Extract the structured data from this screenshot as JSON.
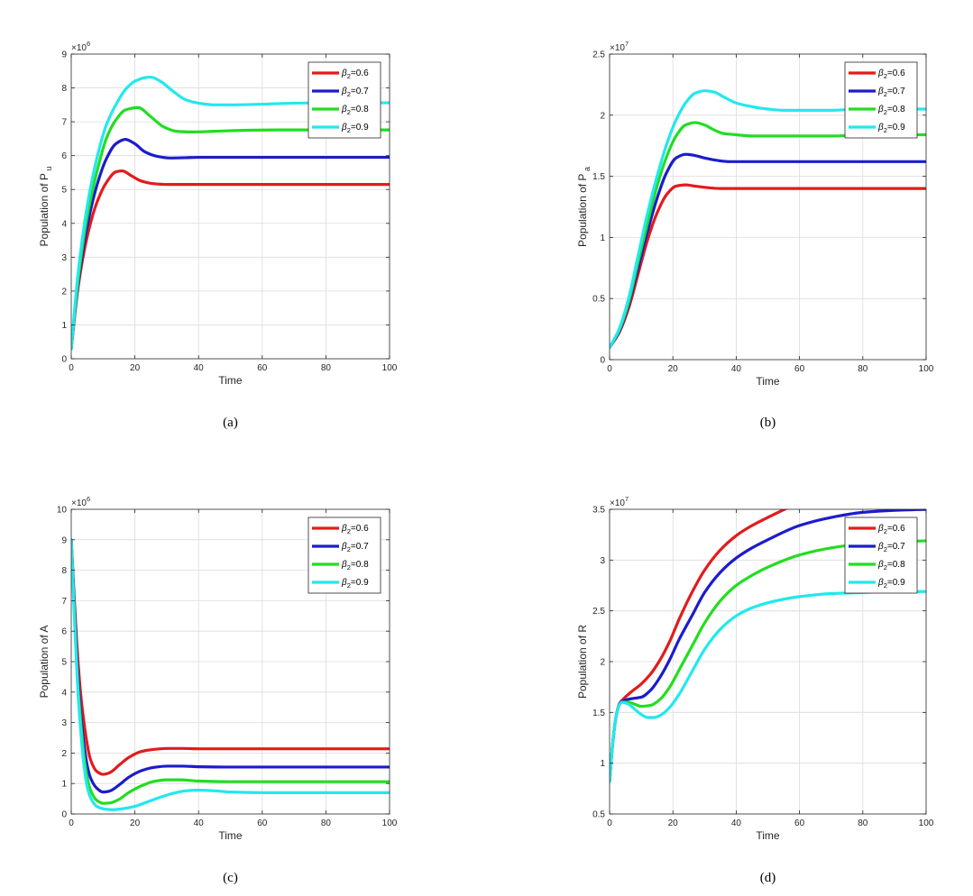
{
  "legend_symbol": "β",
  "legend_subscript": "2",
  "chart_data": [
    {
      "type": "line",
      "caption": "(a)",
      "xlabel": "Time",
      "ylabel_base": "Population of P",
      "ylabel_sub": "u",
      "multiplier": "×10",
      "multiplier_exp": "6",
      "xlim": [
        0,
        100
      ],
      "ylim": [
        0,
        9
      ],
      "xticks": [
        "0",
        "20",
        "40",
        "60",
        "80",
        "100"
      ],
      "yticks": [
        "0",
        "1",
        "2",
        "3",
        "4",
        "5",
        "6",
        "7",
        "8",
        "9"
      ],
      "grid": true,
      "legend_position": "top-right",
      "series": [
        {
          "name": "=0.6",
          "color": "#e41a1c",
          "x": [
            0,
            2,
            5,
            8,
            11,
            14,
            16,
            19,
            22,
            26,
            30,
            35,
            40,
            50,
            60,
            70,
            80,
            90,
            100
          ],
          "y": [
            0.3,
            2.0,
            3.6,
            4.6,
            5.2,
            5.52,
            5.55,
            5.4,
            5.25,
            5.17,
            5.15,
            5.15,
            5.15,
            5.15,
            5.15,
            5.15,
            5.15,
            5.15,
            5.15
          ]
        },
        {
          "name": "=0.7",
          "color": "#1c1ccc",
          "x": [
            0,
            2,
            5,
            8,
            11,
            14,
            17,
            20,
            23,
            27,
            31,
            36,
            40,
            50,
            60,
            70,
            80,
            90,
            100
          ],
          "y": [
            0.3,
            2.1,
            3.9,
            5.1,
            5.9,
            6.35,
            6.48,
            6.35,
            6.12,
            5.98,
            5.93,
            5.94,
            5.95,
            5.95,
            5.95,
            5.95,
            5.95,
            5.95,
            5.95
          ]
        },
        {
          "name": "=0.8",
          "color": "#22dd22",
          "x": [
            0,
            2,
            5,
            8,
            11,
            14,
            17,
            21,
            25,
            29,
            33,
            38,
            45,
            55,
            65,
            80,
            100
          ],
          "y": [
            0.3,
            2.2,
            4.2,
            5.5,
            6.5,
            7.05,
            7.35,
            7.42,
            7.15,
            6.85,
            6.72,
            6.7,
            6.72,
            6.75,
            6.76,
            6.76,
            6.76
          ]
        },
        {
          "name": "=0.9",
          "color": "#22e8ee",
          "x": [
            0,
            2,
            5,
            8,
            11,
            14,
            17,
            20,
            23,
            25,
            28,
            32,
            36,
            40,
            45,
            50,
            60,
            70,
            80,
            90,
            100
          ],
          "y": [
            0.3,
            2.4,
            4.5,
            5.9,
            6.9,
            7.5,
            7.95,
            8.2,
            8.3,
            8.32,
            8.2,
            7.9,
            7.65,
            7.55,
            7.5,
            7.5,
            7.52,
            7.55,
            7.56,
            7.56,
            7.56
          ]
        }
      ]
    },
    {
      "type": "line",
      "caption": "(b)",
      "xlabel": "Time",
      "ylabel_base": "Population of P",
      "ylabel_sub": "a",
      "multiplier": "×10",
      "multiplier_exp": "7",
      "xlim": [
        0,
        100
      ],
      "ylim": [
        0,
        2.5
      ],
      "xticks": [
        "0",
        "20",
        "40",
        "60",
        "80",
        "100"
      ],
      "yticks": [
        "0",
        "0.5",
        "1",
        "1.5",
        "2",
        "2.5"
      ],
      "grid": true,
      "legend_position": "top-right",
      "series": [
        {
          "name": "=0.6",
          "color": "#e41a1c",
          "x": [
            0,
            3,
            6,
            9,
            12,
            15,
            18,
            21,
            24,
            27,
            30,
            35,
            40,
            50,
            60,
            80,
            100
          ],
          "y": [
            0.1,
            0.22,
            0.42,
            0.7,
            0.98,
            1.2,
            1.35,
            1.42,
            1.43,
            1.42,
            1.41,
            1.4,
            1.4,
            1.4,
            1.4,
            1.4,
            1.4
          ]
        },
        {
          "name": "=0.7",
          "color": "#1c1ccc",
          "x": [
            0,
            3,
            6,
            9,
            12,
            15,
            18,
            21,
            24,
            27,
            30,
            34,
            38,
            45,
            60,
            80,
            100
          ],
          "y": [
            0.1,
            0.23,
            0.45,
            0.75,
            1.05,
            1.32,
            1.53,
            1.65,
            1.68,
            1.67,
            1.65,
            1.63,
            1.62,
            1.62,
            1.62,
            1.62,
            1.62
          ]
        },
        {
          "name": "=0.8",
          "color": "#22dd22",
          "x": [
            0,
            3,
            6,
            9,
            12,
            15,
            18,
            21,
            24,
            27,
            30,
            33,
            36,
            40,
            45,
            55,
            70,
            85,
            100
          ],
          "y": [
            0.1,
            0.24,
            0.47,
            0.8,
            1.12,
            1.42,
            1.66,
            1.83,
            1.92,
            1.94,
            1.92,
            1.88,
            1.85,
            1.84,
            1.83,
            1.83,
            1.83,
            1.84,
            1.84
          ]
        },
        {
          "name": "=0.9",
          "color": "#22e8ee",
          "x": [
            0,
            3,
            6,
            9,
            12,
            15,
            18,
            21,
            24,
            27,
            30,
            33,
            36,
            40,
            45,
            50,
            55,
            60,
            70,
            80,
            90,
            100
          ],
          "y": [
            0.1,
            0.25,
            0.5,
            0.85,
            1.2,
            1.5,
            1.76,
            1.96,
            2.1,
            2.18,
            2.2,
            2.19,
            2.15,
            2.1,
            2.07,
            2.05,
            2.04,
            2.04,
            2.04,
            2.05,
            2.05,
            2.05
          ]
        }
      ]
    },
    {
      "type": "line",
      "caption": "(c)",
      "xlabel": "Time",
      "ylabel_base": "Population of A",
      "ylabel_sub": "",
      "multiplier": "×10",
      "multiplier_exp": "6",
      "xlim": [
        0,
        100
      ],
      "ylim": [
        0,
        10
      ],
      "xticks": [
        "0",
        "20",
        "40",
        "60",
        "80",
        "100"
      ],
      "yticks": [
        "0",
        "1",
        "2",
        "3",
        "4",
        "5",
        "6",
        "7",
        "8",
        "9",
        "10"
      ],
      "grid": true,
      "legend_position": "top-right",
      "series": [
        {
          "name": "=0.6",
          "color": "#e41a1c",
          "x": [
            0,
            1,
            2,
            3,
            4,
            5,
            6,
            8,
            10,
            12,
            15,
            18,
            22,
            26,
            30,
            35,
            40,
            50,
            60,
            70,
            80,
            90,
            100
          ],
          "y": [
            9.0,
            7.0,
            5.2,
            3.9,
            3.0,
            2.3,
            1.8,
            1.4,
            1.3,
            1.35,
            1.6,
            1.85,
            2.05,
            2.12,
            2.15,
            2.15,
            2.14,
            2.14,
            2.14,
            2.14,
            2.14,
            2.14,
            2.14
          ]
        },
        {
          "name": "=0.7",
          "color": "#1c1ccc",
          "x": [
            0,
            1,
            2,
            3,
            4,
            5,
            6,
            8,
            10,
            12,
            15,
            18,
            22,
            26,
            30,
            35,
            40,
            50,
            60,
            70,
            80,
            90,
            100
          ],
          "y": [
            9.0,
            6.8,
            4.7,
            3.3,
            2.3,
            1.6,
            1.2,
            0.85,
            0.72,
            0.75,
            0.95,
            1.2,
            1.42,
            1.53,
            1.57,
            1.57,
            1.55,
            1.54,
            1.54,
            1.54,
            1.54,
            1.54,
            1.54
          ]
        },
        {
          "name": "=0.8",
          "color": "#22dd22",
          "x": [
            0,
            1,
            2,
            3,
            4,
            5,
            6,
            8,
            10,
            12,
            15,
            18,
            22,
            26,
            30,
            34,
            40,
            50,
            60,
            70,
            80,
            90,
            100
          ],
          "y": [
            9.0,
            6.6,
            4.4,
            3.0,
            1.9,
            1.2,
            0.8,
            0.45,
            0.35,
            0.36,
            0.48,
            0.7,
            0.92,
            1.07,
            1.12,
            1.12,
            1.08,
            1.06,
            1.06,
            1.06,
            1.06,
            1.06,
            1.06
          ]
        },
        {
          "name": "=0.9",
          "color": "#22e8ee",
          "x": [
            0,
            1,
            2,
            3,
            4,
            5,
            6,
            8,
            10,
            13,
            16,
            20,
            24,
            28,
            32,
            36,
            40,
            45,
            50,
            60,
            70,
            80,
            90,
            100
          ],
          "y": [
            9.0,
            6.4,
            4.2,
            2.7,
            1.6,
            0.9,
            0.55,
            0.25,
            0.17,
            0.14,
            0.17,
            0.25,
            0.4,
            0.55,
            0.68,
            0.76,
            0.78,
            0.76,
            0.72,
            0.7,
            0.7,
            0.7,
            0.7,
            0.7
          ]
        }
      ]
    },
    {
      "type": "line",
      "caption": "(d)",
      "xlabel": "Time",
      "ylabel_base": "Population of R",
      "ylabel_sub": "",
      "multiplier": "×10",
      "multiplier_exp": "7",
      "xlim": [
        0,
        100
      ],
      "ylim": [
        0.5,
        3.5
      ],
      "xticks": [
        "0",
        "20",
        "40",
        "60",
        "80",
        "100"
      ],
      "yticks": [
        "0.5",
        "1",
        "1.5",
        "2",
        "2.5",
        "3",
        "3.5"
      ],
      "grid": true,
      "legend_position": "top-right",
      "series": [
        {
          "name": "=0.6",
          "color": "#e41a1c",
          "x": [
            0,
            1,
            2,
            3,
            4,
            6,
            8,
            10,
            13,
            16,
            19,
            22,
            26,
            30,
            35,
            40,
            45,
            50,
            60,
            70,
            80,
            90,
            100
          ],
          "y": [
            0.82,
            1.2,
            1.45,
            1.58,
            1.62,
            1.68,
            1.73,
            1.78,
            1.88,
            2.02,
            2.2,
            2.42,
            2.68,
            2.9,
            3.1,
            3.24,
            3.34,
            3.42,
            3.56,
            3.64,
            3.68,
            3.7,
            3.72
          ]
        },
        {
          "name": "=0.7",
          "color": "#1c1ccc",
          "x": [
            0,
            1,
            2,
            3,
            4,
            6,
            8,
            10,
            13,
            16,
            19,
            22,
            26,
            30,
            35,
            40,
            45,
            50,
            60,
            70,
            80,
            90,
            100
          ],
          "y": [
            0.82,
            1.2,
            1.45,
            1.57,
            1.61,
            1.63,
            1.64,
            1.65,
            1.72,
            1.85,
            2.02,
            2.22,
            2.45,
            2.68,
            2.88,
            3.02,
            3.12,
            3.2,
            3.34,
            3.42,
            3.47,
            3.49,
            3.5
          ]
        },
        {
          "name": "=0.8",
          "color": "#22dd22",
          "x": [
            0,
            1,
            2,
            3,
            4,
            6,
            8,
            10,
            13,
            16,
            19,
            22,
            26,
            30,
            35,
            40,
            45,
            50,
            60,
            70,
            80,
            90,
            100
          ],
          "y": [
            0.82,
            1.2,
            1.45,
            1.57,
            1.6,
            1.6,
            1.58,
            1.56,
            1.57,
            1.63,
            1.75,
            1.92,
            2.15,
            2.38,
            2.6,
            2.75,
            2.85,
            2.93,
            3.05,
            3.12,
            3.16,
            3.18,
            3.19
          ]
        },
        {
          "name": "=0.9",
          "color": "#22e8ee",
          "x": [
            0,
            1,
            2,
            3,
            4,
            6,
            8,
            10,
            12,
            14,
            16,
            19,
            22,
            26,
            30,
            35,
            40,
            45,
            50,
            60,
            70,
            80,
            90,
            100
          ],
          "y": [
            0.82,
            1.2,
            1.45,
            1.57,
            1.6,
            1.58,
            1.53,
            1.48,
            1.45,
            1.45,
            1.47,
            1.55,
            1.68,
            1.9,
            2.12,
            2.32,
            2.45,
            2.53,
            2.58,
            2.64,
            2.67,
            2.68,
            2.69,
            2.69
          ]
        }
      ]
    }
  ]
}
